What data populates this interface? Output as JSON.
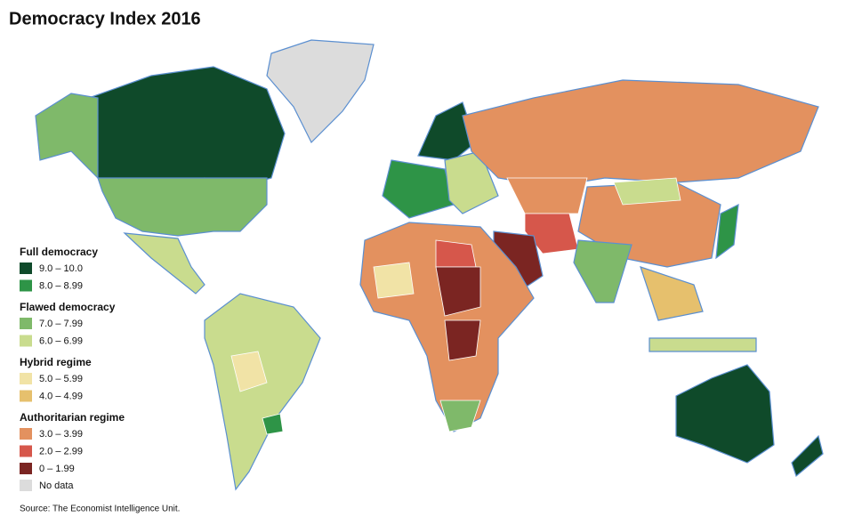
{
  "title": "Democracy Index 2016",
  "legend": {
    "groups": [
      {
        "label": "Full democracy",
        "items": [
          {
            "label": "9.0 – 10.0",
            "color": "#0f4a2a"
          },
          {
            "label": "8.0 – 8.99",
            "color": "#2e9447"
          }
        ]
      },
      {
        "label": "Flawed democracy",
        "items": [
          {
            "label": "7.0 – 7.99",
            "color": "#7fb96a"
          },
          {
            "label": "6.0 – 6.99",
            "color": "#c9dc8e"
          }
        ]
      },
      {
        "label": "Hybrid regime",
        "items": [
          {
            "label": "5.0 – 5.99",
            "color": "#f1e3a6"
          },
          {
            "label": "4.0 – 4.99",
            "color": "#e6c06d"
          }
        ]
      },
      {
        "label": "Authoritarian regime",
        "items": [
          {
            "label": "3.0 – 3.99",
            "color": "#e3915f"
          },
          {
            "label": "2.0 – 2.99",
            "color": "#d6574b"
          },
          {
            "label": "0 – 1.99",
            "color": "#7b2522"
          }
        ]
      }
    ],
    "no_data": {
      "label": "No data",
      "color": "#dcdcdc"
    }
  },
  "source": "Source: The Economist Intelligence Unit."
}
